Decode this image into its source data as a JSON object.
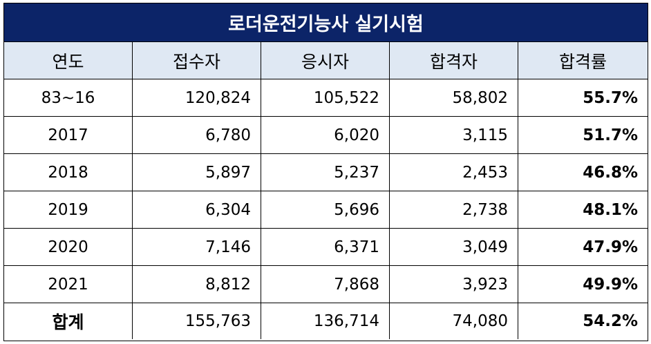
{
  "title": "로더운전기능사 실기시험",
  "headers": [
    "연도",
    "접수자",
    "응시자",
    "합격자",
    "합격률"
  ],
  "rows": [
    [
      "83~16",
      "120,824",
      "105,522",
      "58,802",
      "55.7%"
    ],
    [
      "2017",
      "6,780",
      "6,020",
      "3,115",
      "51.7%"
    ],
    [
      "2018",
      "5,897",
      "5,237",
      "2,453",
      "46.8%"
    ],
    [
      "2019",
      "6,304",
      "5,696",
      "2,738",
      "48.1%"
    ],
    [
      "2020",
      "7,146",
      "6,371",
      "3,049",
      "47.9%"
    ],
    [
      "2021",
      "8,812",
      "7,868",
      "3,923",
      "49.9%"
    ]
  ],
  "total": [
    "합계",
    "155,763",
    "136,714",
    "74,080",
    "54.2%"
  ],
  "colors": {
    "title_bg": "#0c2468",
    "header_bg": "#dfe8f3",
    "title_text": "#ffffff"
  }
}
